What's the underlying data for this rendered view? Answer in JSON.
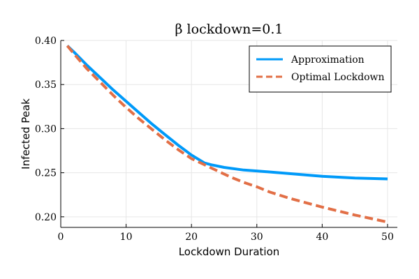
{
  "chart_data": {
    "type": "line",
    "title": "β lockdown=0.1",
    "xlabel": "Lockdown Duration",
    "ylabel": "Infected Peak",
    "xlim": [
      0,
      51.5
    ],
    "ylim": [
      0.188,
      0.4
    ],
    "xticks": [
      0,
      10,
      20,
      30,
      40,
      50
    ],
    "yticks": [
      0.2,
      0.25,
      0.3,
      0.35,
      0.4
    ],
    "ytick_labels": [
      "0.20",
      "0.25",
      "0.30",
      "0.35",
      "0.40"
    ],
    "grid": true,
    "legend_position": "top-right",
    "series": [
      {
        "name": "Approximation",
        "color": "#009af9",
        "style": "solid",
        "x": [
          1,
          2,
          4,
          6,
          8,
          10,
          12,
          14,
          16,
          18,
          20,
          22,
          23,
          25,
          28,
          30,
          35,
          40,
          45,
          50
        ],
        "y": [
          0.394,
          0.387,
          0.372,
          0.358,
          0.344,
          0.331,
          0.318,
          0.305,
          0.293,
          0.281,
          0.27,
          0.261,
          0.259,
          0.256,
          0.253,
          0.252,
          0.249,
          0.246,
          0.244,
          0.243
        ]
      },
      {
        "name": "Optimal Lockdown",
        "color": "#e26f46",
        "style": "dashed",
        "x": [
          1,
          2,
          4,
          6,
          8,
          10,
          12,
          14,
          16,
          18,
          20,
          22,
          24,
          26,
          28,
          30,
          32,
          35,
          40,
          45,
          50
        ],
        "y": [
          0.394,
          0.385,
          0.368,
          0.353,
          0.338,
          0.324,
          0.311,
          0.299,
          0.287,
          0.276,
          0.266,
          0.259,
          0.252,
          0.245,
          0.239,
          0.234,
          0.228,
          0.221,
          0.211,
          0.202,
          0.194
        ]
      }
    ]
  }
}
